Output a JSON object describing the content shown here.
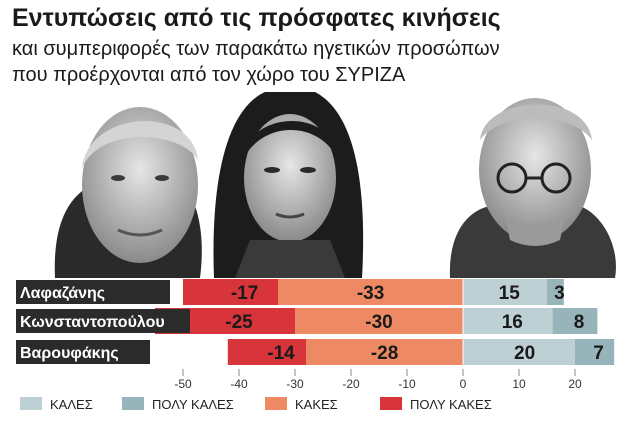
{
  "title": "Εντυπώσεις από τις πρόσφατες κινήσεις",
  "subtitle_lines": [
    "και συμπεριφορές των παρακάτω ηγετικών προσώπων",
    "που προέρχονται από τον χώρο του ΣΥΡΙΖΑ"
  ],
  "chart_data": {
    "type": "bar",
    "orientation": "horizontal",
    "stacked": "diverging",
    "categories": [
      "Λαφαζάνης",
      "Κωνσταντοπούλου",
      "Βαρουφάκης"
    ],
    "series": [
      {
        "name": "ΚΑΛΕΣ",
        "values": [
          15,
          16,
          20
        ],
        "color": "#bdd0d4"
      },
      {
        "name": "ΠΟΛΥ ΚΑΛΕΣ",
        "values": [
          3,
          8,
          7
        ],
        "color": "#97b4ba"
      },
      {
        "name": "ΚΑΚΕΣ",
        "values": [
          -33,
          -30,
          -28
        ],
        "color": "#ee8a63"
      },
      {
        "name": "ΠΟΛΥ ΚΑΚΕΣ",
        "values": [
          -17,
          -25,
          -14
        ],
        "color": "#d8343b"
      }
    ],
    "xlim": [
      -50,
      25
    ],
    "xticks": [
      -50,
      -40,
      -30,
      -20,
      -10,
      0,
      10,
      20
    ],
    "legend_position": "bottom"
  }
}
